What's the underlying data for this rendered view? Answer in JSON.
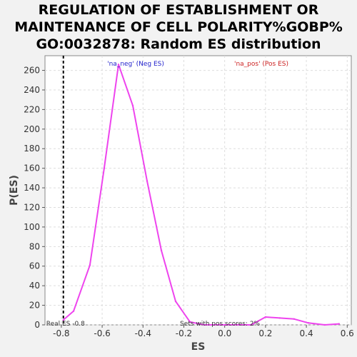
{
  "title": {
    "line1": "REGULATION OF ESTABLISHMENT OR",
    "line2": "MAINTENANCE OF CELL POLARITY%GOBP%",
    "line3": "GO:0032878: Random ES distribution"
  },
  "colors": {
    "series": "#ee44ee",
    "neg_label": "#2222cc",
    "pos_label": "#cc2222",
    "real_es_line": "#000000",
    "grid": "#dddddd",
    "plot_bg": "#ffffff"
  },
  "chart_data": {
    "type": "line",
    "xlabel": "ES",
    "ylabel": "P(ES)",
    "xlim": [
      -0.88,
      0.62
    ],
    "ylim": [
      0,
      275
    ],
    "xticks": [
      -0.8,
      -0.6,
      -0.4,
      -0.2,
      0.0,
      0.2,
      0.4,
      0.6
    ],
    "xtick_labels": [
      "-0.8",
      "-0.6",
      "-0.4",
      "-0.2",
      "0.0",
      "0.2",
      "0.4",
      "0.6"
    ],
    "yticks": [
      0,
      20,
      40,
      60,
      80,
      100,
      120,
      140,
      160,
      180,
      200,
      220,
      240,
      260
    ],
    "grid": true,
    "series": [
      {
        "x": [
          -0.79,
          -0.74,
          -0.66,
          -0.59,
          -0.52,
          -0.45,
          -0.38,
          -0.31,
          -0.24,
          -0.17,
          -0.1,
          0.13,
          0.2,
          0.27,
          0.34,
          0.41,
          0.49,
          0.56
        ],
        "y": [
          5,
          14,
          61,
          160,
          266,
          224,
          147,
          76,
          24,
          3,
          0,
          0,
          8,
          7,
          6,
          2,
          0,
          1
        ]
      }
    ],
    "real_es": -0.79,
    "annotations": {
      "neg_label": "'na_neg' (Neg ES)",
      "pos_label": "'na_pos' (Pos ES)",
      "real_es_label": "Real ES -0.8",
      "pos_scores_label": "Sets with pos scores: 2%"
    }
  }
}
